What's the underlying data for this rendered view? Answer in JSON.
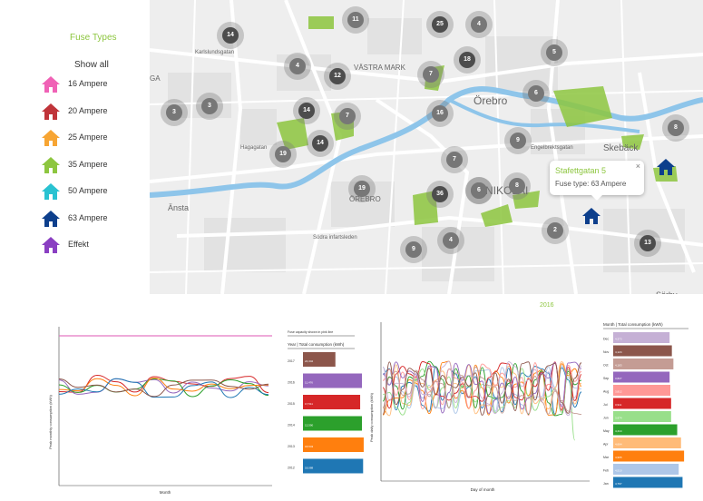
{
  "sidebar": {
    "title": "Fuse Types",
    "show_all": "Show all",
    "items": [
      {
        "label": "16 Ampere",
        "color": "#f062b6"
      },
      {
        "label": "20 Ampere",
        "color": "#c0343a"
      },
      {
        "label": "25 Ampere",
        "color": "#f7a533"
      },
      {
        "label": "35 Ampere",
        "color": "#8dc63f"
      },
      {
        "label": "50 Ampere",
        "color": "#29c2d1"
      },
      {
        "label": "63 Ampere",
        "color": "#0d3f8c"
      },
      {
        "label": "Effekt",
        "color": "#8a3fc2"
      }
    ]
  },
  "map": {
    "labels": [
      "GA",
      "Karlslundsgatan",
      "VÄSTRA MARK",
      "Örebro",
      "Skebäck",
      "ÖREBRO",
      "NIKOLAI",
      "Änsta",
      "Södra infartsleden",
      "Sörby",
      "Hagagatan",
      "Engelbrektsgatan"
    ],
    "clusters": [
      "14",
      "11",
      "25",
      "4",
      "4",
      "12",
      "7",
      "18",
      "5",
      "3",
      "3",
      "14",
      "7",
      "16",
      "6",
      "8",
      "14",
      "19",
      "19",
      "9",
      "7",
      "9",
      "36",
      "8",
      "2",
      "9",
      "4",
      "13",
      "6"
    ],
    "popup": {
      "title": "Stafettgatan 5",
      "body": "Fuse type: 63 Ampere",
      "close": "×"
    }
  },
  "chart_left": {
    "ylabel": "Peak monthly consumption (kWh)",
    "xlabel": "Month",
    "table_note": "Fuse capacity shown in pink line",
    "table_header": "Year | Total consumption (kWh)"
  },
  "chart_right": {
    "title": "2016",
    "ylabel": "Peak daily consumption (kWh)",
    "xlabel": "Day of month",
    "table_header": "Month | Total consumption (kWh)"
  },
  "chart_data": [
    {
      "type": "bar",
      "orientation": "horizontal",
      "categories": [
        "2017",
        "2016",
        "2015",
        "2014",
        "2013",
        "2012"
      ],
      "values": [
        0.55,
        1.0,
        0.97,
        1.0,
        1.03,
        1.02
      ],
      "value_labels": [
        "24,342",
        "11,476",
        "17,511",
        "12,590",
        "18,543",
        "18,088"
      ],
      "colors": [
        "#8c564b",
        "#9467bd",
        "#d62728",
        "#2ca02c",
        "#ff7f0e",
        "#1f77b4"
      ]
    },
    {
      "type": "bar",
      "orientation": "horizontal",
      "categories": [
        "Dec",
        "Nov",
        "Oct",
        "Sep",
        "Aug",
        "Jul",
        "Jun",
        "May",
        "Apr",
        "Mar",
        "Feb",
        "Jan"
      ],
      "values": [
        0.74,
        0.77,
        0.79,
        0.74,
        0.75,
        0.76,
        0.76,
        0.84,
        0.89,
        0.93,
        0.86,
        0.91
      ],
      "value_labels": [
        "4,373",
        "4,124",
        "4,183",
        "3,827",
        "3,812",
        "3,911",
        "3,974",
        "4,414",
        "4,664",
        "4,965",
        "4,510",
        "4,797"
      ],
      "colors": [
        "#c5b0d5",
        "#8c564b",
        "#c49c94",
        "#9467bd",
        "#ff9896",
        "#d62728",
        "#98df8a",
        "#2ca02c",
        "#ffbb78",
        "#ff7f0e",
        "#aec7e8",
        "#1f77b4"
      ]
    },
    {
      "type": "line",
      "title": "",
      "xlabel": "Month",
      "ylabel": "Peak monthly consumption (kWh)",
      "series_colors": [
        "#d62728",
        "#9467bd",
        "#2ca02c",
        "#ff7f0e",
        "#1f77b4",
        "#8c564b"
      ],
      "fuse_line_color": "#e377c2"
    },
    {
      "type": "line",
      "title": "2016",
      "xlabel": "Day of month",
      "ylabel": "Peak daily consumption (kWh)",
      "series_colors": [
        "#1f77b4",
        "#aec7e8",
        "#ff7f0e",
        "#ffbb78",
        "#2ca02c",
        "#98df8a",
        "#d62728",
        "#ff9896",
        "#9467bd",
        "#c5b0d5",
        "#8c564b",
        "#c49c94"
      ]
    }
  ]
}
